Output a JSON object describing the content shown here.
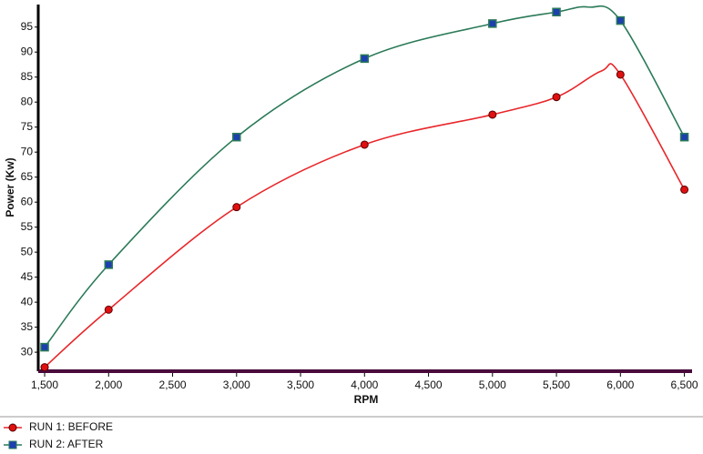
{
  "chart_data": {
    "type": "line",
    "x_label": "RPM",
    "y_label": "Power (Kw)",
    "series": [
      {
        "name": "RUN 1: BEFORE",
        "color": "#e8262a",
        "marker": "circle",
        "marker_color": "#e01010",
        "x": [
          1500,
          2000,
          3000,
          4000,
          5000,
          5500,
          5850,
          6000,
          6500
        ],
        "values": [
          27,
          38.5,
          59,
          71.5,
          77.5,
          81,
          86.2,
          85.5,
          62.5
        ]
      },
      {
        "name": "RUN 2: AFTER",
        "color": "#2a7a58",
        "marker": "square",
        "marker_color": "#1d3fb0",
        "x": [
          1500,
          2000,
          3000,
          4000,
          5000,
          5500,
          5750,
          6000,
          6500
        ],
        "values": [
          31,
          47.5,
          73,
          88.7,
          95.7,
          98,
          99,
          96.3,
          73
        ]
      }
    ],
    "xlim": [
      1450,
      6560
    ],
    "ylim": [
      26.2,
      99.5
    ],
    "xticks": [
      {
        "value": 1500,
        "label": "1,500"
      },
      {
        "value": 2000,
        "label": "2,000"
      },
      {
        "value": 2500,
        "label": "2,500"
      },
      {
        "value": 3000,
        "label": "3,000"
      },
      {
        "value": 3500,
        "label": "3,500"
      },
      {
        "value": 4000,
        "label": "4,000"
      },
      {
        "value": 4500,
        "label": "4,500"
      },
      {
        "value": 5000,
        "label": "5,000"
      },
      {
        "value": 5500,
        "label": "5,500"
      },
      {
        "value": 6000,
        "label": "6,000"
      },
      {
        "value": 6500,
        "label": "6,500"
      }
    ],
    "yticks": [
      30,
      35,
      40,
      45,
      50,
      55,
      60,
      65,
      70,
      75,
      80,
      85,
      90,
      95
    ],
    "grid": false,
    "legend": "bottom-left"
  }
}
